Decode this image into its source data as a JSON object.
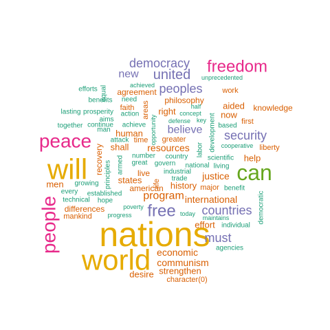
{
  "colors": {
    "green": "#1B9E77",
    "orange": "#D95F02",
    "purple": "#7570B3",
    "magenta": "#E7298A",
    "lime": "#66A61E",
    "gold": "#E6AB02"
  },
  "words": [
    {
      "text": "nations",
      "color": "gold"
    },
    {
      "text": "world",
      "color": "gold"
    },
    {
      "text": "will",
      "color": "gold"
    },
    {
      "text": "can",
      "color": "lime"
    },
    {
      "text": "peace",
      "color": "magenta"
    },
    {
      "text": "people",
      "color": "magenta"
    },
    {
      "text": "freedom",
      "color": "magenta"
    },
    {
      "text": "free",
      "color": "purple"
    },
    {
      "text": "united",
      "color": "purple"
    },
    {
      "text": "democracy",
      "color": "purple"
    },
    {
      "text": "countries",
      "color": "purple"
    },
    {
      "text": "peoples",
      "color": "purple"
    },
    {
      "text": "must",
      "color": "purple"
    },
    {
      "text": "security",
      "color": "purple"
    },
    {
      "text": "believe",
      "color": "purple"
    },
    {
      "text": "new",
      "color": "purple"
    },
    {
      "text": "program",
      "color": "orange"
    },
    {
      "text": "economic",
      "color": "orange"
    },
    {
      "text": "communism",
      "color": "orange"
    },
    {
      "text": "international",
      "color": "orange"
    },
    {
      "text": "justice",
      "color": "orange"
    },
    {
      "text": "resources",
      "color": "orange"
    },
    {
      "text": "men",
      "color": "orange"
    },
    {
      "text": "history",
      "color": "orange"
    },
    {
      "text": "states",
      "color": "orange"
    },
    {
      "text": "strengthen",
      "color": "orange"
    },
    {
      "text": "desire",
      "color": "orange"
    },
    {
      "text": "aided",
      "color": "orange"
    },
    {
      "text": "help",
      "color": "orange"
    },
    {
      "text": "now",
      "color": "orange"
    },
    {
      "text": "shall",
      "color": "orange"
    },
    {
      "text": "human",
      "color": "orange"
    },
    {
      "text": "right",
      "color": "orange"
    },
    {
      "text": "effort",
      "color": "orange"
    },
    {
      "text": "american",
      "color": "orange"
    },
    {
      "text": "live",
      "color": "orange"
    },
    {
      "text": "agreement",
      "color": "orange"
    },
    {
      "text": "philosophy",
      "color": "orange"
    },
    {
      "text": "knowledge",
      "color": "orange"
    },
    {
      "text": "differences",
      "color": "orange"
    },
    {
      "text": "mankind",
      "color": "orange"
    },
    {
      "text": "recovery",
      "color": "orange"
    },
    {
      "text": "faith",
      "color": "orange"
    },
    {
      "text": "time",
      "color": "orange"
    },
    {
      "text": "areas",
      "color": "orange"
    },
    {
      "text": "greater",
      "color": "orange"
    },
    {
      "text": "life",
      "color": "orange"
    },
    {
      "text": "liberty",
      "color": "orange"
    },
    {
      "text": "first",
      "color": "orange"
    },
    {
      "text": "work",
      "color": "orange"
    },
    {
      "text": "major",
      "color": "orange"
    },
    {
      "text": "character(0)",
      "color": "orange"
    },
    {
      "text": "achieve",
      "color": "green"
    },
    {
      "text": "industrial",
      "color": "green"
    },
    {
      "text": "govern",
      "color": "green"
    },
    {
      "text": "national",
      "color": "green"
    },
    {
      "text": "country",
      "color": "green"
    },
    {
      "text": "great",
      "color": "green"
    },
    {
      "text": "armed",
      "color": "green"
    },
    {
      "text": "principles",
      "color": "green"
    },
    {
      "text": "growing",
      "color": "green"
    },
    {
      "text": "established",
      "color": "green"
    },
    {
      "text": "every",
      "color": "green"
    },
    {
      "text": "technical",
      "color": "green"
    },
    {
      "text": "hope",
      "color": "green"
    },
    {
      "text": "progress",
      "color": "green"
    },
    {
      "text": "poverty",
      "color": "green"
    },
    {
      "text": "today",
      "color": "green"
    },
    {
      "text": "maintains",
      "color": "green"
    },
    {
      "text": "individual",
      "color": "green"
    },
    {
      "text": "agencies",
      "color": "green"
    },
    {
      "text": "democratic",
      "color": "green"
    },
    {
      "text": "benefit",
      "color": "green"
    },
    {
      "text": "living",
      "color": "green"
    },
    {
      "text": "scientific",
      "color": "green"
    },
    {
      "text": "labor",
      "color": "green"
    },
    {
      "text": "trade",
      "color": "green"
    },
    {
      "text": "development",
      "color": "green"
    },
    {
      "text": "based",
      "color": "green"
    },
    {
      "text": "cooperative",
      "color": "green"
    },
    {
      "text": "defense",
      "color": "green"
    },
    {
      "text": "key",
      "color": "green"
    },
    {
      "text": "concept",
      "color": "green"
    },
    {
      "text": "half",
      "color": "green"
    },
    {
      "text": "opportunity",
      "color": "green"
    },
    {
      "text": "action",
      "color": "green"
    },
    {
      "text": "attack",
      "color": "green"
    },
    {
      "text": "number",
      "color": "green"
    },
    {
      "text": "aims",
      "color": "green"
    },
    {
      "text": "man",
      "color": "green"
    },
    {
      "text": "prosperity",
      "color": "green"
    },
    {
      "text": "continue",
      "color": "green"
    },
    {
      "text": "together",
      "color": "green"
    },
    {
      "text": "lasting",
      "color": "green"
    },
    {
      "text": "need",
      "color": "green"
    },
    {
      "text": "benefits",
      "color": "green"
    },
    {
      "text": "efforts",
      "color": "green"
    },
    {
      "text": "equal",
      "color": "green"
    },
    {
      "text": "achieved",
      "color": "green"
    },
    {
      "text": "unprecedented",
      "color": "green"
    }
  ]
}
